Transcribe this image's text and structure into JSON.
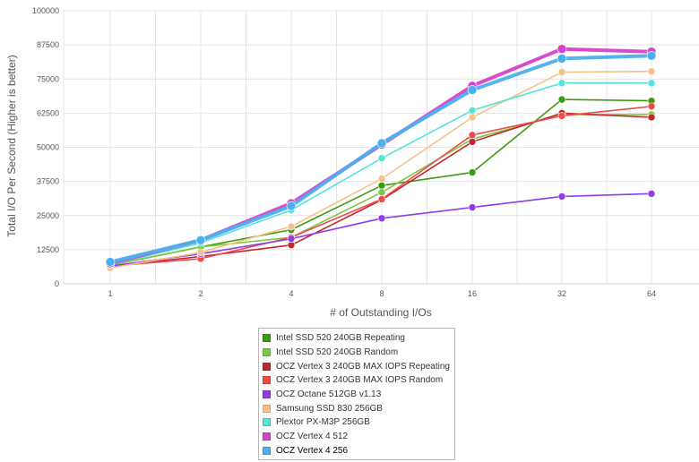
{
  "chart_data": {
    "type": "line",
    "title": "",
    "xlabel": "# of Outstanding I/Os",
    "ylabel": "Total I/O Per Second (Higher is better)",
    "x_scale": "log2",
    "categories": [
      "1",
      "2",
      "4",
      "8",
      "16",
      "32",
      "64"
    ],
    "y_ticks": [
      "0",
      "12500",
      "25000",
      "37500",
      "50000",
      "62500",
      "75000",
      "87500",
      "100000"
    ],
    "ylim": [
      0,
      100000
    ],
    "grid": true,
    "legend_position": "bottom",
    "series": [
      {
        "name": "Intel SSD 520 240GB Repeating",
        "color": "#3e9a0e",
        "values": [
          6800,
          13500,
          19800,
          36000,
          40800,
          67500,
          67000
        ]
      },
      {
        "name": "Intel SSD 520 240GB Random",
        "color": "#7ac943",
        "values": [
          6800,
          13500,
          17000,
          33500,
          53000,
          62000,
          62000
        ]
      },
      {
        "name": "OCZ Vertex 3 240GB MAX IOPS Repeating",
        "color": "#c1272d",
        "values": [
          6500,
          10000,
          14200,
          30800,
          52000,
          62500,
          61000
        ]
      },
      {
        "name": "OCZ Vertex 3 240GB MAX IOPS Random",
        "color": "#ef4b4b",
        "values": [
          6500,
          9200,
          17000,
          31000,
          54500,
          61500,
          65000
        ]
      },
      {
        "name": "OCZ Octane 512GB v1.13",
        "color": "#8f3de8",
        "values": [
          6500,
          11000,
          16500,
          24000,
          28000,
          32000,
          33000
        ]
      },
      {
        "name": "Samsung SSD 830 256GB",
        "color": "#f2c28b",
        "values": [
          5800,
          11500,
          21000,
          38500,
          61000,
          77500,
          77800
        ]
      },
      {
        "name": "Plextor PX-M3P 256GB",
        "color": "#55e3db",
        "values": [
          7000,
          15000,
          27000,
          46000,
          63500,
          73500,
          73500
        ]
      },
      {
        "name": "OCZ Vertex 4 512",
        "color": "#d742c8",
        "values": [
          7500,
          16000,
          29500,
          51000,
          72500,
          86000,
          85000
        ]
      },
      {
        "name": "OCZ Vertex 4 256",
        "color": "#4cb0ef",
        "values": [
          8000,
          16000,
          28500,
          51500,
          71000,
          82500,
          83500
        ]
      }
    ]
  }
}
